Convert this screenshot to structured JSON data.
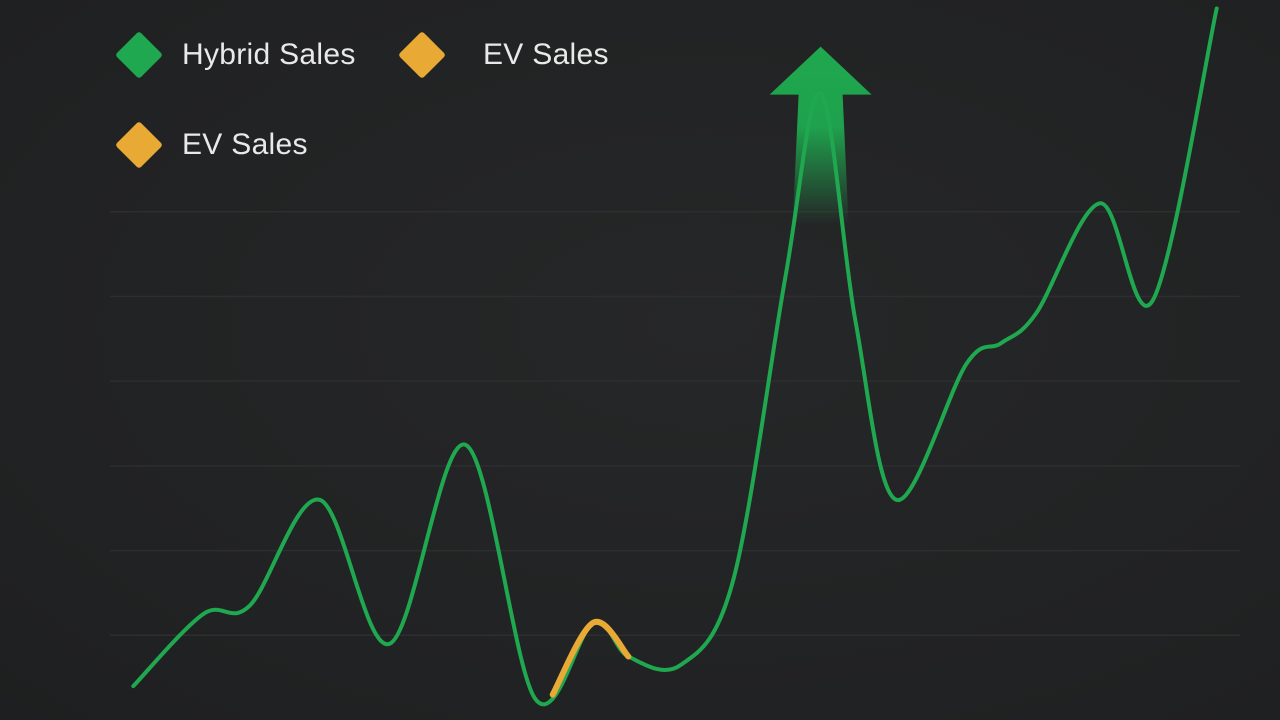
{
  "colors": {
    "background": "#232425",
    "gridline": "#2d2e2f",
    "hybrid": "#1fa84f",
    "ev": "#e8a935",
    "legend_text": "#e9e9e9"
  },
  "legend": [
    {
      "label": "Hybrid Sales",
      "color": "#1fa84f",
      "marker": "diamond"
    },
    {
      "label": "EV Sales",
      "color": "#e8a935",
      "marker": "diamond"
    },
    {
      "label": "EV Sales",
      "color": "#e8a935",
      "marker": "diamond"
    }
  ],
  "chart_data": {
    "type": "line",
    "title": "",
    "xlabel": "",
    "ylabel": "",
    "grid": true,
    "legend_position": "top-left",
    "series": [
      {
        "name": "Hybrid Sales",
        "color": "#1fa84f",
        "points": [
          [
            0,
            0.8
          ],
          [
            1.2,
            2.5
          ],
          [
            2.0,
            2.7
          ],
          [
            3.2,
            5.2
          ],
          [
            4.4,
            1.8
          ],
          [
            5.7,
            6.5
          ],
          [
            6.9,
            0.5
          ],
          [
            7.9,
            2.3
          ],
          [
            8.5,
            1.5
          ],
          [
            9.4,
            1.3
          ],
          [
            10.3,
            3.3
          ],
          [
            11.2,
            10.5
          ],
          [
            11.8,
            14.8
          ],
          [
            12.4,
            9.4
          ],
          [
            13.1,
            5.2
          ],
          [
            14.3,
            8.4
          ],
          [
            14.9,
            8.9
          ],
          [
            15.5,
            9.6
          ],
          [
            16.6,
            12.2
          ],
          [
            17.5,
            9.9
          ],
          [
            18.6,
            16.8
          ]
        ]
      },
      {
        "name": "EV Sales",
        "color": "#e8a935",
        "points": [
          [
            7.2,
            0.6
          ],
          [
            7.9,
            2.3
          ],
          [
            8.5,
            1.5
          ]
        ]
      }
    ],
    "annotations": [
      {
        "type": "up-arrow",
        "x": 11.8,
        "y_base": 11.7,
        "y_tip": 15.9,
        "color": "#1fa84f"
      }
    ],
    "xlim": [
      -0.4,
      19.0
    ],
    "ylim": [
      0,
      17.0
    ]
  }
}
